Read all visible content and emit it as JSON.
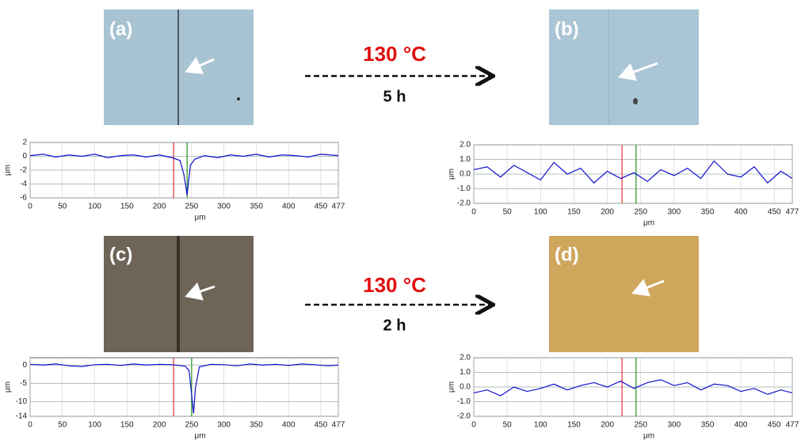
{
  "panels": [
    {
      "label": "(a)"
    },
    {
      "label": "(b)"
    },
    {
      "label": "(c)"
    },
    {
      "label": "(d)"
    }
  ],
  "steps": [
    {
      "temperature": "130 °C",
      "time": "5 h"
    },
    {
      "temperature": "130 °C",
      "time": "2 h"
    }
  ],
  "chart_data": [
    {
      "type": "line",
      "xlabel": "μm",
      "ylabel": "μm",
      "xlim": [
        0,
        477
      ],
      "xticks": [
        0,
        50,
        100,
        150,
        200,
        250,
        300,
        350,
        400,
        450,
        477
      ],
      "ylim": [
        -6,
        2
      ],
      "yticks": [
        2,
        0,
        -2,
        -4,
        -6
      ],
      "grid": true,
      "x": [
        0,
        20,
        40,
        60,
        80,
        100,
        120,
        140,
        160,
        180,
        200,
        220,
        232,
        238,
        243,
        248,
        255,
        270,
        290,
        310,
        330,
        350,
        370,
        390,
        410,
        430,
        450,
        477
      ],
      "series": [
        {
          "color": "#1010cc",
          "values": [
            0.1,
            0.3,
            -0.1,
            0.2,
            0,
            0.3,
            -0.2,
            0.1,
            0.2,
            -0.1,
            0.2,
            -0.2,
            -0.6,
            -2.6,
            -5.6,
            -1.3,
            -0.4,
            0.1,
            -0.2,
            0.2,
            0,
            0.3,
            -0.1,
            0.2,
            0.1,
            -0.1,
            0.3,
            0.1
          ]
        }
      ],
      "markers": [
        {
          "x": 222,
          "color": "#e03030"
        },
        {
          "x": 243,
          "color": "#209020"
        }
      ]
    },
    {
      "type": "line",
      "xlabel": "μm",
      "ylabel": "μm",
      "xlim": [
        0,
        477
      ],
      "xticks": [
        0,
        50,
        100,
        150,
        200,
        250,
        300,
        350,
        400,
        450,
        477
      ],
      "ylim": [
        -2,
        2
      ],
      "yticks": [
        {
          "value": 2,
          "label": "2.0"
        },
        {
          "value": 1,
          "label": "1.0"
        },
        {
          "value": 0,
          "label": "0.0"
        },
        {
          "value": -1,
          "label": "-1.0"
        },
        {
          "value": -2,
          "label": "-2.0"
        }
      ],
      "grid": true,
      "x": [
        0,
        20,
        40,
        60,
        80,
        100,
        120,
        140,
        160,
        180,
        200,
        220,
        240,
        260,
        280,
        300,
        320,
        340,
        360,
        380,
        400,
        420,
        440,
        460,
        477
      ],
      "series": [
        {
          "color": "#1010cc",
          "values": [
            0.3,
            0.5,
            -0.2,
            0.6,
            0.1,
            -0.4,
            0.8,
            0,
            0.4,
            -0.6,
            0.2,
            -0.3,
            0.1,
            -0.5,
            0.3,
            -0.1,
            0.4,
            -0.3,
            0.9,
            0,
            -0.2,
            0.5,
            -0.6,
            0.2,
            -0.3
          ]
        }
      ],
      "markers": [
        {
          "x": 222,
          "color": "#e03030"
        },
        {
          "x": 243,
          "color": "#209020"
        }
      ]
    },
    {
      "type": "line",
      "xlabel": "μm",
      "ylabel": "μm",
      "xlim": [
        0,
        477
      ],
      "xticks": [
        0,
        50,
        100,
        150,
        200,
        250,
        300,
        350,
        400,
        450,
        477
      ],
      "ylim": [
        -14,
        2
      ],
      "yticks": [
        0,
        -5,
        -10,
        -14
      ],
      "grid": true,
      "x": [
        0,
        20,
        40,
        60,
        80,
        100,
        120,
        140,
        160,
        180,
        200,
        220,
        240,
        246,
        250,
        253,
        256,
        262,
        280,
        300,
        320,
        340,
        360,
        380,
        400,
        420,
        440,
        460,
        477
      ],
      "series": [
        {
          "color": "#1010cc",
          "values": [
            0.2,
            0,
            0.3,
            -0.2,
            -0.4,
            0.1,
            0.2,
            -0.1,
            0.3,
            0,
            0.2,
            0.1,
            -0.3,
            -1.5,
            -8,
            -13.2,
            -6,
            -0.5,
            0.2,
            0.1,
            -0.2,
            0.3,
            0,
            0.2,
            -0.1,
            0.3,
            0.1,
            -0.2,
            0
          ]
        }
      ],
      "markers": [
        {
          "x": 222,
          "color": "#e03030"
        },
        {
          "x": 250,
          "color": "#209020"
        }
      ]
    },
    {
      "type": "line",
      "xlabel": "μm",
      "ylabel": "μm",
      "xlim": [
        0,
        477
      ],
      "xticks": [
        0,
        50,
        100,
        150,
        200,
        250,
        300,
        350,
        400,
        450,
        477
      ],
      "ylim": [
        -2,
        2
      ],
      "yticks": [
        {
          "value": 2,
          "label": "2.0"
        },
        {
          "value": 1,
          "label": "1.0"
        },
        {
          "value": 0,
          "label": "0.0"
        },
        {
          "value": -1,
          "label": "-1.0"
        },
        {
          "value": -2,
          "label": "-2.0"
        }
      ],
      "grid": true,
      "x": [
        0,
        20,
        40,
        60,
        80,
        100,
        120,
        140,
        160,
        180,
        200,
        220,
        240,
        260,
        280,
        300,
        320,
        340,
        360,
        380,
        400,
        420,
        440,
        460,
        477
      ],
      "series": [
        {
          "color": "#1010cc",
          "values": [
            -0.4,
            -0.2,
            -0.6,
            0,
            -0.3,
            -0.1,
            0.2,
            -0.2,
            0.1,
            0.3,
            0,
            0.4,
            -0.1,
            0.3,
            0.5,
            0.1,
            0.3,
            -0.2,
            0.2,
            0.1,
            -0.3,
            -0.1,
            -0.5,
            -0.2,
            -0.4
          ]
        }
      ],
      "markers": [
        {
          "x": 222,
          "color": "#e03030"
        },
        {
          "x": 243,
          "color": "#209020"
        }
      ]
    }
  ]
}
